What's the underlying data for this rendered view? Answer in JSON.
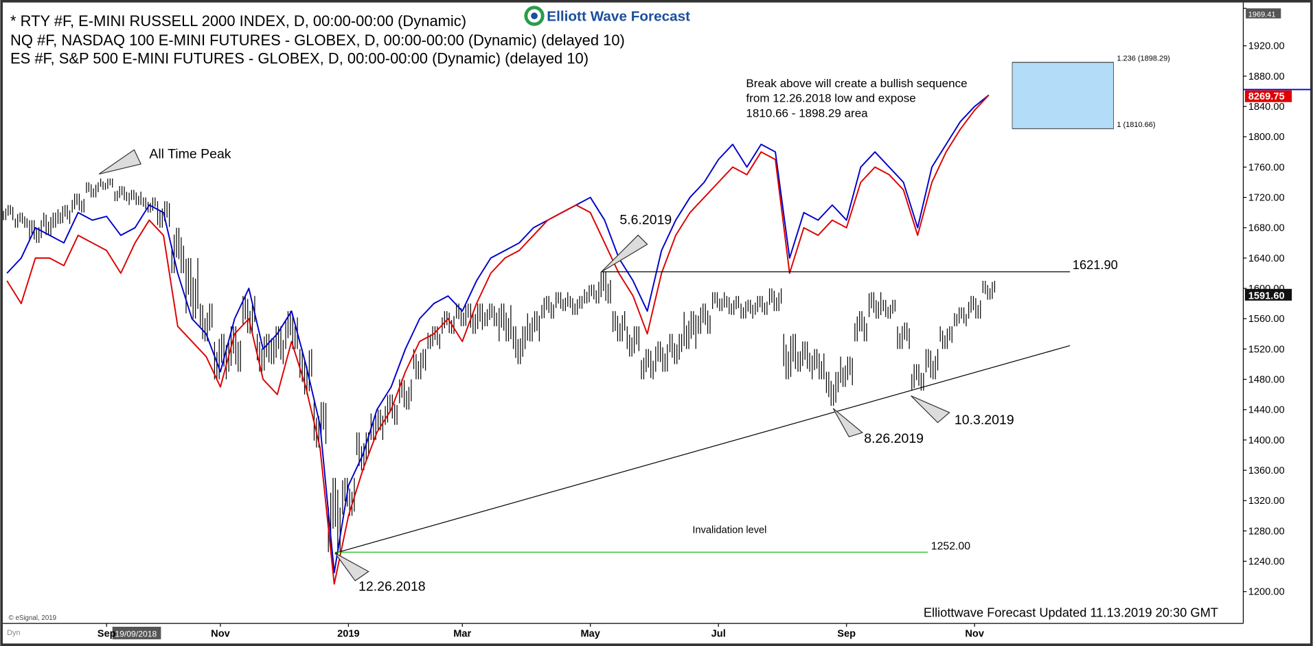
{
  "chart_data": {
    "type": "ohlc",
    "title_lines": [
      "* RTY #F, E-MINI RUSSELL 2000 INDEX, D, 00:00-00:00 (Dynamic)",
      "NQ #F, NASDAQ 100 E-MINI FUTURES - GLOBEX, D, 00:00-00:00 (Dynamic) (delayed 10)",
      "ES #F, S&P 500 E-MINI FUTURES - GLOBEX, D, 00:00-00:00 (Dynamic) (delayed 10)"
    ],
    "logo": "Elliott Wave Forecast",
    "categories": [
      null,
      null,
      null,
      null,
      null,
      null,
      null,
      "Sep",
      null,
      null,
      null,
      null,
      null,
      null,
      null,
      "Nov",
      null,
      null,
      null,
      null,
      null,
      null,
      null,
      null,
      "2019",
      null,
      null,
      null,
      null,
      null,
      null,
      null,
      "Mar",
      null,
      null,
      null,
      null,
      null,
      null,
      null,
      null,
      "May",
      null,
      null,
      null,
      null,
      null,
      null,
      null,
      null,
      "Jul",
      null,
      null,
      null,
      null,
      null,
      null,
      null,
      null,
      "Sep",
      null,
      null,
      null,
      null,
      null,
      null,
      null,
      null,
      "Nov",
      null
    ],
    "series": [
      {
        "color": "#000000",
        "high": [
          1710,
          1700,
          1690,
          1700,
          1710,
          1725,
          1740,
          1745,
          1735,
          1730,
          1720,
          1715,
          1680,
          1640,
          1580,
          1540,
          1550,
          1590,
          1540,
          1550,
          1570,
          1520,
          1450,
          1350,
          1350,
          1410,
          1440,
          1460,
          1480,
          1520,
          1550,
          1570,
          1580,
          1580,
          1580,
          1580,
          1550,
          1570,
          1590,
          1595,
          1590,
          1605,
          1622,
          1570,
          1550,
          1520,
          1530,
          1540,
          1570,
          1580,
          1595,
          1590,
          1585,
          1590,
          1600,
          1540,
          1530,
          1520,
          1490,
          1510,
          1570,
          1595,
          1585,
          1555,
          1500,
          1520,
          1550,
          1575,
          1590,
          1610
        ],
        "low": [
          1690,
          1680,
          1660,
          1670,
          1685,
          1700,
          1720,
          1730,
          1715,
          1710,
          1700,
          1680,
          1620,
          1560,
          1530,
          1480,
          1490,
          1540,
          1490,
          1500,
          1520,
          1460,
          1390,
          1252,
          1300,
          1360,
          1400,
          1420,
          1440,
          1480,
          1520,
          1540,
          1550,
          1540,
          1550,
          1530,
          1500,
          1530,
          1560,
          1570,
          1565,
          1580,
          1580,
          1530,
          1510,
          1480,
          1490,
          1500,
          1520,
          1540,
          1570,
          1565,
          1560,
          1565,
          1570,
          1480,
          1490,
          1480,
          1445,
          1470,
          1530,
          1560,
          1560,
          1520,
          1465,
          1480,
          1520,
          1550,
          1560,
          1585
        ]
      },
      {
        "color": "#0000c8",
        "values": [
          1620,
          1640,
          1680,
          1670,
          1660,
          1700,
          1690,
          1695,
          1670,
          1680,
          1710,
          1700,
          1620,
          1560,
          1540,
          1490,
          1560,
          1600,
          1520,
          1540,
          1570,
          1500,
          1420,
          1225,
          1340,
          1380,
          1440,
          1470,
          1520,
          1560,
          1580,
          1590,
          1570,
          1610,
          1640,
          1650,
          1660,
          1680,
          1690,
          1700,
          1710,
          1720,
          1690,
          1640,
          1610,
          1570,
          1650,
          1690,
          1720,
          1740,
          1770,
          1790,
          1760,
          1790,
          1780,
          1640,
          1700,
          1690,
          1710,
          1690,
          1760,
          1780,
          1760,
          1740,
          1680,
          1760,
          1790,
          1820,
          1840,
          1855
        ]
      },
      {
        "color": "#dc0000",
        "values": [
          1610,
          1580,
          1640,
          1640,
          1630,
          1670,
          1660,
          1650,
          1620,
          1660,
          1690,
          1670,
          1550,
          1530,
          1510,
          1470,
          1540,
          1560,
          1480,
          1460,
          1530,
          1470,
          1390,
          1210,
          1300,
          1360,
          1410,
          1440,
          1490,
          1530,
          1540,
          1560,
          1530,
          1580,
          1620,
          1640,
          1650,
          1670,
          1690,
          1700,
          1710,
          1700,
          1660,
          1620,
          1590,
          1540,
          1620,
          1670,
          1700,
          1720,
          1740,
          1760,
          1750,
          1780,
          1770,
          1620,
          1680,
          1670,
          1690,
          1680,
          1740,
          1760,
          1750,
          1730,
          1670,
          1740,
          1780,
          1810,
          1835,
          1855
        ]
      }
    ],
    "ylim": [
      1158,
      1969.41
    ],
    "yticks": [
      {
        "value": 1200,
        "label": "1200.00"
      },
      {
        "value": 1240,
        "label": "1240.00"
      },
      {
        "value": 1280,
        "label": "1280.00"
      },
      {
        "value": 1320,
        "label": "1320.00"
      },
      {
        "value": 1360,
        "label": "1360.00"
      },
      {
        "value": 1400,
        "label": "1400.00"
      },
      {
        "value": 1440,
        "label": "1440.00"
      },
      {
        "value": 1480,
        "label": "1480.00"
      },
      {
        "value": 1520,
        "label": "1520.00"
      },
      {
        "value": 1560,
        "label": "1560.00"
      },
      {
        "value": 1600,
        "label": "1600.00"
      },
      {
        "value": 1640,
        "label": "1640.00"
      },
      {
        "value": 1680,
        "label": "1680.00"
      },
      {
        "value": 1720,
        "label": "1720.00"
      },
      {
        "value": 1760,
        "label": "1760.00"
      },
      {
        "value": 1800,
        "label": "1800.00"
      },
      {
        "value": 1840,
        "label": "1840.00"
      },
      {
        "value": 1880,
        "label": "1880.00"
      },
      {
        "value": 1920,
        "label": "1920.00"
      },
      {
        "value": 1969.41,
        "label": "1969.41"
      }
    ],
    "grid": false,
    "levels": [
      {
        "value": 1621.9,
        "label": "1621.90",
        "color": "#000000"
      },
      {
        "value": 1252,
        "label": "1252.00",
        "color": "#00b400"
      }
    ],
    "target_zone": {
      "color": "#b3dcf8",
      "high": {
        "value": 1898.29,
        "label": "1.236 (1898.29)"
      },
      "low": {
        "value": 1810.66,
        "label": "1 (1810.66)"
      }
    },
    "last_price": {
      "value": 1591.6,
      "label": "1591.60"
    },
    "nq_price_tag": "8269.75",
    "annotations": [
      "All Time Peak",
      "5.6.2019",
      "8.26.2019",
      "10.3.2019",
      "12.26.2018",
      "Invalidation level"
    ],
    "note_lines": [
      "Break above will create a bullish sequence",
      "from 12.26.2018 low and expose",
      "1810.66 - 1898.29 area"
    ],
    "footer": "Elliottwave Forecast Updated 11.13.2019 20:30 GMT",
    "copyright": "© eSignal, 2019",
    "crosshair_date": "19/09/2018",
    "mode_label": "Dyn"
  }
}
